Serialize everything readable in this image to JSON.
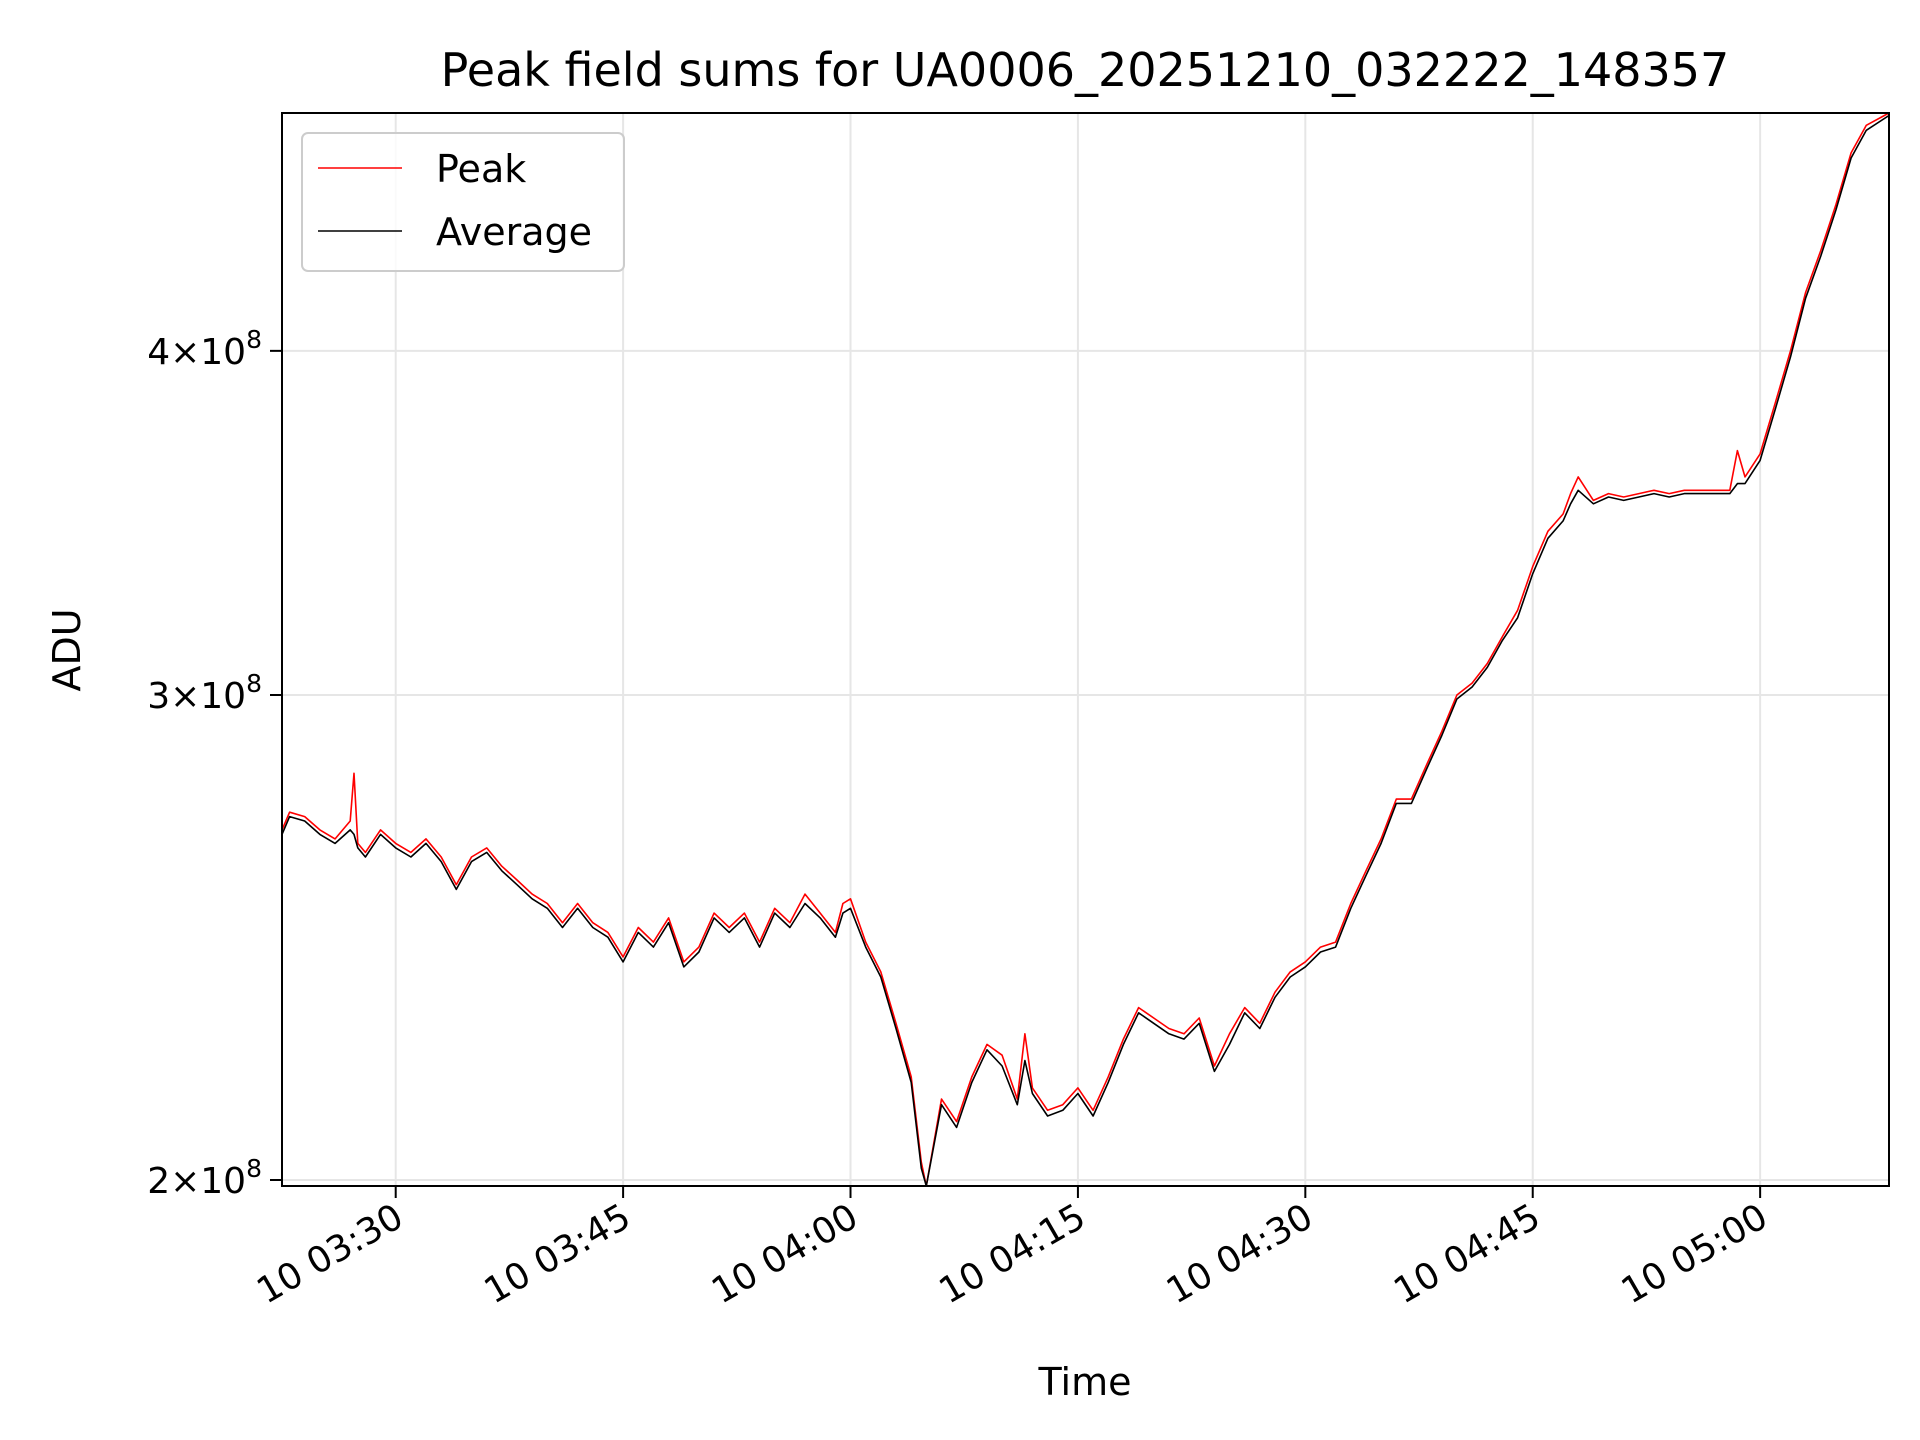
{
  "chart_data": {
    "type": "line",
    "title": "Peak field sums for UA0006_20251210_032222_148357",
    "xlabel": "Time",
    "ylabel": "ADU",
    "y_scale": "log",
    "grid": true,
    "legend_position": "top-left",
    "xlim": [
      "10 03:22:30",
      "10 05:08:30"
    ],
    "ylim": [
      199000000,
      488000000
    ],
    "x_ticks": [
      {
        "t": "10 03:30",
        "label": "10 03:30"
      },
      {
        "t": "10 03:45",
        "label": "10 03:45"
      },
      {
        "t": "10 04:00",
        "label": "10 04:00"
      },
      {
        "t": "10 04:15",
        "label": "10 04:15"
      },
      {
        "t": "10 04:30",
        "label": "10 04:30"
      },
      {
        "t": "10 04:45",
        "label": "10 04:45"
      },
      {
        "t": "10 05:00",
        "label": "10 05:00"
      }
    ],
    "y_ticks": [
      {
        "value": 200000000,
        "mantissa": "2",
        "times": "×10",
        "exponent": "8"
      },
      {
        "value": 300000000,
        "mantissa": "3",
        "times": "×10",
        "exponent": "8"
      },
      {
        "value": 400000000,
        "mantissa": "4",
        "times": "×10",
        "exponent": "8"
      }
    ],
    "series": [
      {
        "name": "Peak",
        "color": "#ff0000",
        "points": [
          [
            "10 03:22:30",
            268000000
          ],
          [
            "10 03:23:00",
            272000000
          ],
          [
            "10 03:24:00",
            271000000
          ],
          [
            "10 03:25:00",
            268000000
          ],
          [
            "10 03:26:00",
            266000000
          ],
          [
            "10 03:27:00",
            270000000
          ],
          [
            "10 03:27:15",
            281000000
          ],
          [
            "10 03:27:30",
            265000000
          ],
          [
            "10 03:28:00",
            263000000
          ],
          [
            "10 03:29:00",
            268000000
          ],
          [
            "10 03:30:00",
            265000000
          ],
          [
            "10 03:31:00",
            263000000
          ],
          [
            "10 03:32:00",
            266000000
          ],
          [
            "10 03:33:00",
            262000000
          ],
          [
            "10 03:34:00",
            256000000
          ],
          [
            "10 03:35:00",
            262000000
          ],
          [
            "10 03:36:00",
            264000000
          ],
          [
            "10 03:37:00",
            260000000
          ],
          [
            "10 03:38:00",
            257000000
          ],
          [
            "10 03:39:00",
            254000000
          ],
          [
            "10 03:40:00",
            252000000
          ],
          [
            "10 03:41:00",
            248000000
          ],
          [
            "10 03:42:00",
            252000000
          ],
          [
            "10 03:43:00",
            248000000
          ],
          [
            "10 03:44:00",
            246000000
          ],
          [
            "10 03:45:00",
            241000000
          ],
          [
            "10 03:46:00",
            247000000
          ],
          [
            "10 03:47:00",
            244000000
          ],
          [
            "10 03:48:00",
            249000000
          ],
          [
            "10 03:49:00",
            240000000
          ],
          [
            "10 03:50:00",
            243000000
          ],
          [
            "10 03:51:00",
            250000000
          ],
          [
            "10 03:52:00",
            247000000
          ],
          [
            "10 03:53:00",
            250000000
          ],
          [
            "10 03:54:00",
            244000000
          ],
          [
            "10 03:55:00",
            251000000
          ],
          [
            "10 03:56:00",
            248000000
          ],
          [
            "10 03:57:00",
            254000000
          ],
          [
            "10 03:58:00",
            250000000
          ],
          [
            "10 03:59:00",
            246000000
          ],
          [
            "10 03:59:30",
            252000000
          ],
          [
            "10 04:00:00",
            253000000
          ],
          [
            "10 04:01:00",
            244000000
          ],
          [
            "10 04:02:00",
            238000000
          ],
          [
            "10 04:03:00",
            228000000
          ],
          [
            "10 04:04:00",
            218000000
          ],
          [
            "10 04:04:40",
            203000000
          ],
          [
            "10 04:05:00",
            199000000
          ],
          [
            "10 04:06:00",
            214000000
          ],
          [
            "10 04:07:00",
            210000000
          ],
          [
            "10 04:08:00",
            218000000
          ],
          [
            "10 04:09:00",
            224000000
          ],
          [
            "10 04:10:00",
            222000000
          ],
          [
            "10 04:11:00",
            214000000
          ],
          [
            "10 04:11:30",
            226000000
          ],
          [
            "10 04:12:00",
            216000000
          ],
          [
            "10 04:13:00",
            212000000
          ],
          [
            "10 04:14:00",
            213000000
          ],
          [
            "10 04:15:00",
            216000000
          ],
          [
            "10 04:16:00",
            212000000
          ],
          [
            "10 04:17:00",
            218000000
          ],
          [
            "10 04:18:00",
            225000000
          ],
          [
            "10 04:19:00",
            231000000
          ],
          [
            "10 04:20:00",
            229000000
          ],
          [
            "10 04:21:00",
            227000000
          ],
          [
            "10 04:22:00",
            226000000
          ],
          [
            "10 04:23:00",
            229000000
          ],
          [
            "10 04:24:00",
            220000000
          ],
          [
            "10 04:25:00",
            226000000
          ],
          [
            "10 04:26:00",
            231000000
          ],
          [
            "10 04:27:00",
            228000000
          ],
          [
            "10 04:28:00",
            234000000
          ],
          [
            "10 04:29:00",
            238000000
          ],
          [
            "10 04:30:00",
            240000000
          ],
          [
            "10 04:31:00",
            243000000
          ],
          [
            "10 04:32:00",
            244000000
          ],
          [
            "10 04:33:00",
            252000000
          ],
          [
            "10 04:34:00",
            259000000
          ],
          [
            "10 04:35:00",
            266000000
          ],
          [
            "10 04:36:00",
            275000000
          ],
          [
            "10 04:37:00",
            275000000
          ],
          [
            "10 04:38:00",
            283000000
          ],
          [
            "10 04:39:00",
            291000000
          ],
          [
            "10 04:40:00",
            300000000
          ],
          [
            "10 04:41:00",
            303000000
          ],
          [
            "10 04:42:00",
            308000000
          ],
          [
            "10 04:43:00",
            315000000
          ],
          [
            "10 04:44:00",
            322000000
          ],
          [
            "10 04:45:00",
            334000000
          ],
          [
            "10 04:46:00",
            344000000
          ],
          [
            "10 04:47:00",
            349000000
          ],
          [
            "10 04:47:30",
            355000000
          ],
          [
            "10 04:48:00",
            360000000
          ],
          [
            "10 04:49:00",
            353000000
          ],
          [
            "10 04:50:00",
            355000000
          ],
          [
            "10 04:51:00",
            354000000
          ],
          [
            "10 04:52:00",
            355000000
          ],
          [
            "10 04:53:00",
            356000000
          ],
          [
            "10 04:54:00",
            355000000
          ],
          [
            "10 04:55:00",
            356000000
          ],
          [
            "10 04:56:00",
            356000000
          ],
          [
            "10 04:57:00",
            356000000
          ],
          [
            "10 04:58:00",
            356000000
          ],
          [
            "10 04:58:30",
            368000000
          ],
          [
            "10 04:59:00",
            360000000
          ],
          [
            "10 05:00:00",
            367000000
          ],
          [
            "10 05:01:00",
            383000000
          ],
          [
            "10 05:02:00",
            400000000
          ],
          [
            "10 05:03:00",
            420000000
          ],
          [
            "10 05:04:00",
            435000000
          ],
          [
            "10 05:05:00",
            452000000
          ],
          [
            "10 05:06:00",
            472000000
          ],
          [
            "10 05:07:00",
            483000000
          ],
          [
            "10 05:08:30",
            488000000
          ]
        ]
      },
      {
        "name": "Average",
        "color": "#000000",
        "points": [
          [
            "10 03:22:30",
            267000000
          ],
          [
            "10 03:23:00",
            271000000
          ],
          [
            "10 03:24:00",
            270000000
          ],
          [
            "10 03:25:00",
            267000000
          ],
          [
            "10 03:26:00",
            265000000
          ],
          [
            "10 03:27:00",
            268000000
          ],
          [
            "10 03:27:15",
            267000000
          ],
          [
            "10 03:27:30",
            264000000
          ],
          [
            "10 03:28:00",
            262000000
          ],
          [
            "10 03:29:00",
            267000000
          ],
          [
            "10 03:30:00",
            264000000
          ],
          [
            "10 03:31:00",
            262000000
          ],
          [
            "10 03:32:00",
            265000000
          ],
          [
            "10 03:33:00",
            261000000
          ],
          [
            "10 03:34:00",
            255000000
          ],
          [
            "10 03:35:00",
            261000000
          ],
          [
            "10 03:36:00",
            263000000
          ],
          [
            "10 03:37:00",
            259000000
          ],
          [
            "10 03:38:00",
            256000000
          ],
          [
            "10 03:39:00",
            253000000
          ],
          [
            "10 03:40:00",
            251000000
          ],
          [
            "10 03:41:00",
            247000000
          ],
          [
            "10 03:42:00",
            251000000
          ],
          [
            "10 03:43:00",
            247000000
          ],
          [
            "10 03:44:00",
            245000000
          ],
          [
            "10 03:45:00",
            240000000
          ],
          [
            "10 03:46:00",
            246000000
          ],
          [
            "10 03:47:00",
            243000000
          ],
          [
            "10 03:48:00",
            248000000
          ],
          [
            "10 03:49:00",
            239000000
          ],
          [
            "10 03:50:00",
            242000000
          ],
          [
            "10 03:51:00",
            249000000
          ],
          [
            "10 03:52:00",
            246000000
          ],
          [
            "10 03:53:00",
            249000000
          ],
          [
            "10 03:54:00",
            243000000
          ],
          [
            "10 03:55:00",
            250000000
          ],
          [
            "10 03:56:00",
            247000000
          ],
          [
            "10 03:57:00",
            252000000
          ],
          [
            "10 03:58:00",
            249000000
          ],
          [
            "10 03:59:00",
            245000000
          ],
          [
            "10 03:59:30",
            250000000
          ],
          [
            "10 04:00:00",
            251000000
          ],
          [
            "10 04:01:00",
            243000000
          ],
          [
            "10 04:02:00",
            237000000
          ],
          [
            "10 04:03:00",
            227000000
          ],
          [
            "10 04:04:00",
            217000000
          ],
          [
            "10 04:04:40",
            202000000
          ],
          [
            "10 04:05:00",
            199000000
          ],
          [
            "10 04:06:00",
            213000000
          ],
          [
            "10 04:07:00",
            209000000
          ],
          [
            "10 04:08:00",
            217000000
          ],
          [
            "10 04:09:00",
            223000000
          ],
          [
            "10 04:10:00",
            220000000
          ],
          [
            "10 04:11:00",
            213000000
          ],
          [
            "10 04:11:30",
            221000000
          ],
          [
            "10 04:12:00",
            215000000
          ],
          [
            "10 04:13:00",
            211000000
          ],
          [
            "10 04:14:00",
            212000000
          ],
          [
            "10 04:15:00",
            215000000
          ],
          [
            "10 04:16:00",
            211000000
          ],
          [
            "10 04:17:00",
            217000000
          ],
          [
            "10 04:18:00",
            224000000
          ],
          [
            "10 04:19:00",
            230000000
          ],
          [
            "10 04:20:00",
            228000000
          ],
          [
            "10 04:21:00",
            226000000
          ],
          [
            "10 04:22:00",
            225000000
          ],
          [
            "10 04:23:00",
            228000000
          ],
          [
            "10 04:24:00",
            219000000
          ],
          [
            "10 04:25:00",
            224000000
          ],
          [
            "10 04:26:00",
            230000000
          ],
          [
            "10 04:27:00",
            227000000
          ],
          [
            "10 04:28:00",
            233000000
          ],
          [
            "10 04:29:00",
            237000000
          ],
          [
            "10 04:30:00",
            239000000
          ],
          [
            "10 04:31:00",
            242000000
          ],
          [
            "10 04:32:00",
            243000000
          ],
          [
            "10 04:33:00",
            251000000
          ],
          [
            "10 04:34:00",
            258000000
          ],
          [
            "10 04:35:00",
            265000000
          ],
          [
            "10 04:36:00",
            274000000
          ],
          [
            "10 04:37:00",
            274000000
          ],
          [
            "10 04:38:00",
            282000000
          ],
          [
            "10 04:39:00",
            290000000
          ],
          [
            "10 04:40:00",
            299000000
          ],
          [
            "10 04:41:00",
            302000000
          ],
          [
            "10 04:42:00",
            307000000
          ],
          [
            "10 04:43:00",
            314000000
          ],
          [
            "10 04:44:00",
            320000000
          ],
          [
            "10 04:45:00",
            332000000
          ],
          [
            "10 04:46:00",
            342000000
          ],
          [
            "10 04:47:00",
            347000000
          ],
          [
            "10 04:47:30",
            352000000
          ],
          [
            "10 04:48:00",
            356000000
          ],
          [
            "10 04:49:00",
            352000000
          ],
          [
            "10 04:50:00",
            354000000
          ],
          [
            "10 04:51:00",
            353000000
          ],
          [
            "10 04:52:00",
            354000000
          ],
          [
            "10 04:53:00",
            355000000
          ],
          [
            "10 04:54:00",
            354000000
          ],
          [
            "10 04:55:00",
            355000000
          ],
          [
            "10 04:56:00",
            355000000
          ],
          [
            "10 04:57:00",
            355000000
          ],
          [
            "10 04:58:00",
            355000000
          ],
          [
            "10 04:58:30",
            358000000
          ],
          [
            "10 04:59:00",
            358000000
          ],
          [
            "10 05:00:00",
            365000000
          ],
          [
            "10 05:01:00",
            381000000
          ],
          [
            "10 05:02:00",
            398000000
          ],
          [
            "10 05:03:00",
            418000000
          ],
          [
            "10 05:04:00",
            433000000
          ],
          [
            "10 05:05:00",
            450000000
          ],
          [
            "10 05:06:00",
            470000000
          ],
          [
            "10 05:07:00",
            481000000
          ],
          [
            "10 05:08:30",
            487000000
          ]
        ]
      }
    ]
  }
}
